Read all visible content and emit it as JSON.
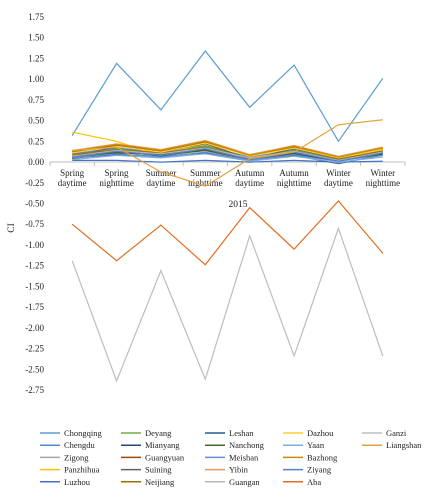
{
  "chart_data": {
    "type": "line",
    "xlabel": "2015",
    "ylabel": "CI",
    "categories": [
      [
        "Spring",
        "daytime"
      ],
      [
        "Spring",
        "nighttime"
      ],
      [
        "Summer",
        "daytime"
      ],
      [
        "Summer",
        "nighttime"
      ],
      [
        "Autumn",
        "daytime"
      ],
      [
        "Autumn",
        "nighttime"
      ],
      [
        "Winter",
        "daytime"
      ],
      [
        "Winter",
        "nighttime"
      ]
    ],
    "ylim": [
      -2.75,
      1.75
    ],
    "yticks": [
      "1.75",
      "1.50",
      "1.25",
      "1.00",
      "0.75",
      "0.50",
      "0.25",
      "0.00",
      "-0.25",
      "-0.50",
      "-0.75",
      "-1.00",
      "-1.25",
      "-1.50",
      "-1.75",
      "-2.00",
      "-2.25",
      "-2.50",
      "-2.75"
    ],
    "grid": false,
    "legend_position": "bottom",
    "series": [
      {
        "name": "Chongqing",
        "color": "#5b9bd5",
        "values": [
          0.32,
          1.19,
          0.63,
          1.34,
          0.66,
          1.17,
          0.25,
          1.01
        ]
      },
      {
        "name": "Chengdu",
        "color": "#4a8ad0",
        "values": [
          0.1,
          0.17,
          0.11,
          0.19,
          0.06,
          0.14,
          0.04,
          0.13
        ]
      },
      {
        "name": "Zigong",
        "color": "#a5a5a5",
        "values": [
          0.08,
          0.14,
          0.09,
          0.16,
          0.05,
          0.12,
          0.03,
          0.11
        ]
      },
      {
        "name": "Panzhihua",
        "color": "#ffc000",
        "values": [
          0.36,
          0.25,
          0.07,
          0.22,
          0.02,
          0.18,
          0.02,
          0.16
        ]
      },
      {
        "name": "Luzhou",
        "color": "#4472c4",
        "values": [
          0.02,
          0.02,
          0.0,
          0.02,
          0.0,
          0.02,
          0.0,
          0.01
        ]
      },
      {
        "name": "Deyang",
        "color": "#70ad47",
        "values": [
          0.07,
          0.16,
          0.1,
          0.2,
          0.04,
          0.15,
          0.03,
          0.14
        ]
      },
      {
        "name": "Mianyang",
        "color": "#264478",
        "values": [
          0.05,
          0.11,
          0.09,
          0.15,
          0.03,
          0.1,
          0.01,
          0.1
        ]
      },
      {
        "name": "Guangyuan",
        "color": "#9e480e",
        "values": [
          0.12,
          0.2,
          0.13,
          0.24,
          0.08,
          0.18,
          0.06,
          0.17
        ]
      },
      {
        "name": "Suining",
        "color": "#636363",
        "values": [
          0.06,
          0.19,
          0.12,
          0.22,
          0.04,
          0.16,
          0.04,
          0.12
        ]
      },
      {
        "name": "Neijiang",
        "color": "#997300",
        "values": [
          0.09,
          0.15,
          0.11,
          0.18,
          0.05,
          0.13,
          0.03,
          0.14
        ]
      },
      {
        "name": "Leshan",
        "color": "#255e91",
        "values": [
          0.05,
          0.09,
          0.07,
          0.11,
          0.02,
          0.08,
          -0.02,
          0.09
        ]
      },
      {
        "name": "Nanchong",
        "color": "#43682b",
        "values": [
          0.04,
          0.12,
          0.08,
          0.14,
          0.03,
          0.11,
          0.02,
          0.1
        ]
      },
      {
        "name": "Meishan",
        "color": "#698ed0",
        "values": [
          0.05,
          0.1,
          0.06,
          0.12,
          0.02,
          0.09,
          -0.01,
          0.08
        ]
      },
      {
        "name": "Yibin",
        "color": "#f1975a",
        "values": [
          0.14,
          0.22,
          0.15,
          0.26,
          0.09,
          0.2,
          0.07,
          0.18
        ]
      },
      {
        "name": "Guangan",
        "color": "#b7b7b7",
        "values": [
          0.07,
          0.14,
          0.1,
          0.17,
          0.05,
          0.13,
          0.02,
          0.12
        ]
      },
      {
        "name": "Dazhou",
        "color": "#ffcd33",
        "values": [
          0.11,
          0.19,
          0.12,
          0.23,
          0.07,
          0.17,
          0.05,
          0.15
        ]
      },
      {
        "name": "Yaan",
        "color": "#7cafdd",
        "values": [
          0.03,
          0.08,
          0.05,
          0.1,
          0.01,
          0.07,
          0.0,
          0.06
        ]
      },
      {
        "name": "Bazhong",
        "color": "#bf9000",
        "values": [
          0.13,
          0.21,
          0.14,
          0.25,
          0.08,
          0.19,
          0.06,
          0.17
        ]
      },
      {
        "name": "Ziyang",
        "color": "#5a7fc9",
        "values": [
          0.06,
          0.13,
          0.08,
          0.16,
          0.03,
          0.12,
          0.01,
          0.11
        ]
      },
      {
        "name": "Aba",
        "color": "#e36c1f",
        "values": [
          -0.75,
          -1.19,
          -0.76,
          -1.24,
          -0.55,
          -1.05,
          -0.47,
          -1.1
        ]
      },
      {
        "name": "Ganzi",
        "color": "#bdbdbd",
        "values": [
          -1.19,
          -2.64,
          -1.31,
          -2.62,
          -0.89,
          -2.34,
          -0.8,
          -2.34
        ]
      },
      {
        "name": "Liangshan",
        "color": "#e2a23a",
        "values": [
          0.14,
          0.18,
          -0.12,
          -0.29,
          0.04,
          0.12,
          0.45,
          0.51
        ]
      }
    ]
  }
}
